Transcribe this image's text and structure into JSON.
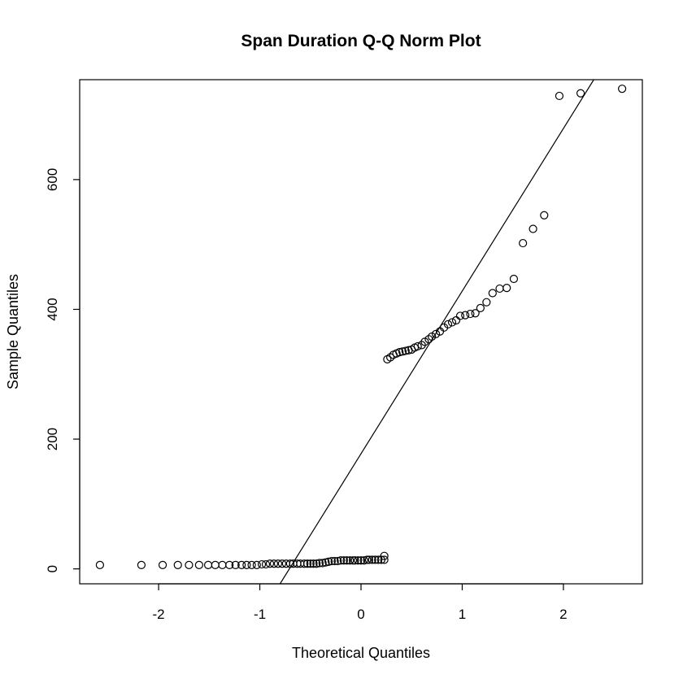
{
  "chart_data": {
    "type": "scatter",
    "title": "Span Duration Q-Q Norm Plot",
    "xlabel": "Theoretical Quantiles",
    "ylabel": "Sample Quantiles",
    "xlim": [
      -2.78,
      2.78
    ],
    "ylim": [
      -23,
      754
    ],
    "x_ticks": [
      -2,
      -1,
      0,
      1,
      2
    ],
    "y_ticks": [
      0,
      200,
      400,
      600
    ],
    "grid": false,
    "legend": "none",
    "reference_line": {
      "x": [
        -0.8,
        2.3
      ],
      "y": [
        -23,
        754
      ]
    },
    "points": [
      [
        -2.58,
        6
      ],
      [
        -2.17,
        6
      ],
      [
        -1.96,
        6
      ],
      [
        -1.81,
        6
      ],
      [
        -1.7,
        6
      ],
      [
        -1.6,
        6
      ],
      [
        -1.51,
        6
      ],
      [
        -1.44,
        6
      ],
      [
        -1.37,
        6
      ],
      [
        -1.3,
        6
      ],
      [
        -1.24,
        6
      ],
      [
        -1.18,
        6
      ],
      [
        -1.13,
        6
      ],
      [
        -1.08,
        6
      ],
      [
        -1.03,
        6
      ],
      [
        -0.98,
        7
      ],
      [
        -0.94,
        7
      ],
      [
        -0.9,
        8
      ],
      [
        -0.86,
        8
      ],
      [
        -0.82,
        8
      ],
      [
        -0.78,
        8
      ],
      [
        -0.74,
        8
      ],
      [
        -0.7,
        8
      ],
      [
        -0.67,
        8
      ],
      [
        -0.63,
        8
      ],
      [
        -0.6,
        8
      ],
      [
        -0.56,
        8
      ],
      [
        -0.53,
        8
      ],
      [
        -0.5,
        8
      ],
      [
        -0.47,
        8
      ],
      [
        -0.44,
        8
      ],
      [
        -0.41,
        9
      ],
      [
        -0.38,
        9
      ],
      [
        -0.35,
        10
      ],
      [
        -0.32,
        11
      ],
      [
        -0.29,
        12
      ],
      [
        -0.26,
        12
      ],
      [
        -0.23,
        12
      ],
      [
        -0.2,
        13
      ],
      [
        -0.17,
        13
      ],
      [
        -0.14,
        13
      ],
      [
        -0.11,
        13
      ],
      [
        -0.08,
        13
      ],
      [
        -0.06,
        13
      ],
      [
        -0.03,
        13
      ],
      [
        0.0,
        13
      ],
      [
        0.03,
        13
      ],
      [
        0.06,
        14
      ],
      [
        0.08,
        14
      ],
      [
        0.11,
        14
      ],
      [
        0.14,
        14
      ],
      [
        0.17,
        14
      ],
      [
        0.2,
        14
      ],
      [
        0.23,
        14
      ],
      [
        0.23,
        20
      ],
      [
        0.26,
        323
      ],
      [
        0.29,
        326
      ],
      [
        0.32,
        330
      ],
      [
        0.35,
        332
      ],
      [
        0.38,
        334
      ],
      [
        0.41,
        335
      ],
      [
        0.44,
        336
      ],
      [
        0.47,
        337
      ],
      [
        0.5,
        338
      ],
      [
        0.53,
        341
      ],
      [
        0.56,
        343
      ],
      [
        0.6,
        345
      ],
      [
        0.63,
        350
      ],
      [
        0.67,
        354
      ],
      [
        0.7,
        358
      ],
      [
        0.74,
        362
      ],
      [
        0.78,
        366
      ],
      [
        0.82,
        372
      ],
      [
        0.86,
        377
      ],
      [
        0.9,
        380
      ],
      [
        0.94,
        383
      ],
      [
        0.98,
        390
      ],
      [
        1.03,
        391
      ],
      [
        1.08,
        393
      ],
      [
        1.13,
        394
      ],
      [
        1.18,
        402
      ],
      [
        1.24,
        411
      ],
      [
        1.3,
        425
      ],
      [
        1.37,
        432
      ],
      [
        1.44,
        433
      ],
      [
        1.51,
        447
      ],
      [
        1.6,
        502
      ],
      [
        1.7,
        524
      ],
      [
        1.81,
        545
      ],
      [
        1.96,
        729
      ],
      [
        2.17,
        733
      ],
      [
        2.58,
        740
      ]
    ]
  }
}
